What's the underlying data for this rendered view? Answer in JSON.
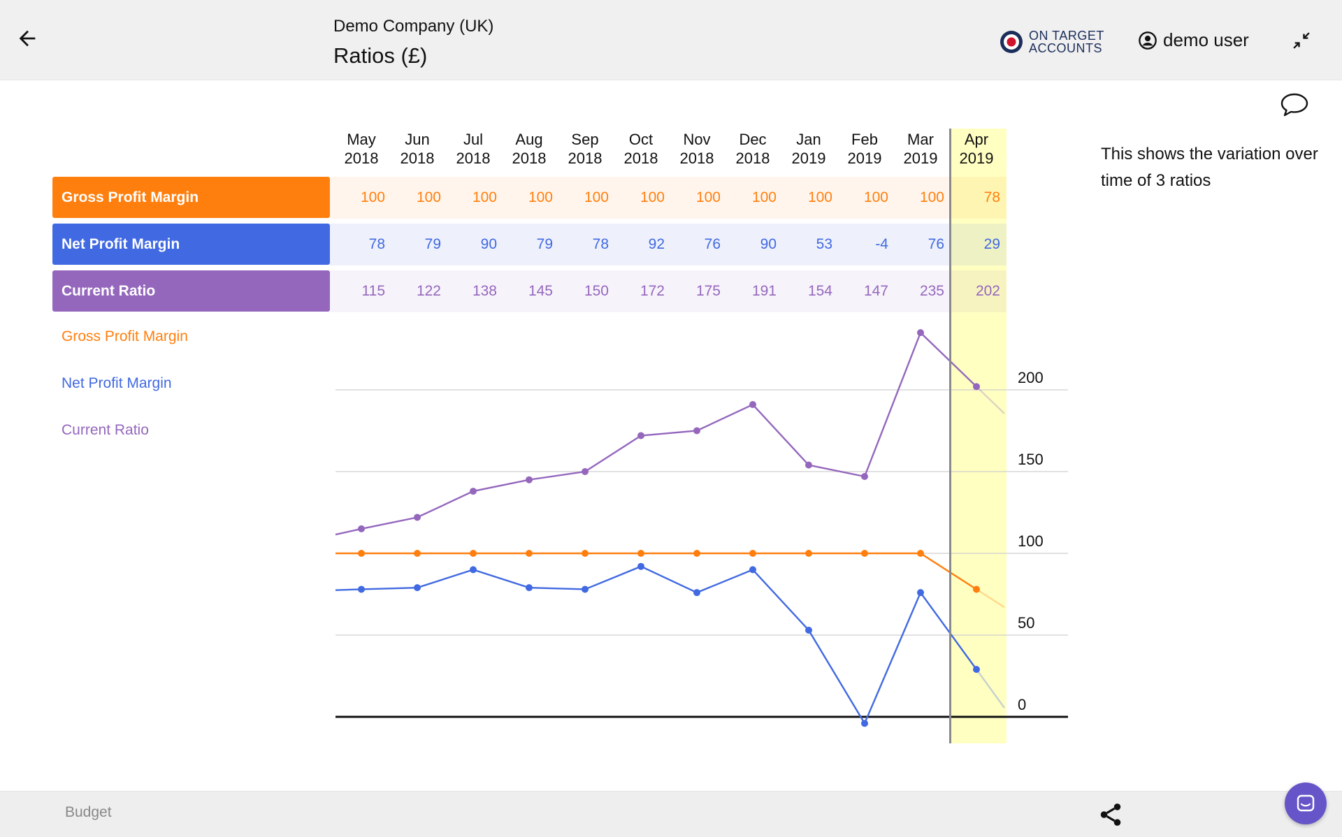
{
  "header": {
    "company": "Demo Company (UK)",
    "title": "Ratios (£)",
    "logo_line1": "ON TARGET",
    "logo_line2": "ACCOUNTS",
    "user": "demo user"
  },
  "note": "This shows the variation over time of 3 ratios",
  "months": [
    {
      "m": "May",
      "y": "2018"
    },
    {
      "m": "Jun",
      "y": "2018"
    },
    {
      "m": "Jul",
      "y": "2018"
    },
    {
      "m": "Aug",
      "y": "2018"
    },
    {
      "m": "Sep",
      "y": "2018"
    },
    {
      "m": "Oct",
      "y": "2018"
    },
    {
      "m": "Nov",
      "y": "2018"
    },
    {
      "m": "Dec",
      "y": "2018"
    },
    {
      "m": "Jan",
      "y": "2019"
    },
    {
      "m": "Feb",
      "y": "2019"
    },
    {
      "m": "Mar",
      "y": "2019"
    },
    {
      "m": "Apr",
      "y": "2019"
    }
  ],
  "colors": {
    "gross_profit_margin": "#ff7f0e",
    "net_profit_margin": "#4169e1",
    "current_ratio": "#9467bd",
    "highlight": "#ffffc2"
  },
  "footer": {
    "budget": "Budget"
  },
  "chart_data": {
    "type": "line",
    "categories": [
      "May 2018",
      "Jun 2018",
      "Jul 2018",
      "Aug 2018",
      "Sep 2018",
      "Oct 2018",
      "Nov 2018",
      "Dec 2018",
      "Jan 2019",
      "Feb 2019",
      "Mar 2019",
      "Apr 2019"
    ],
    "series": [
      {
        "name": "Gross Profit Margin",
        "key": "gross_profit_margin",
        "values": [
          100,
          100,
          100,
          100,
          100,
          100,
          100,
          100,
          100,
          100,
          100,
          78
        ]
      },
      {
        "name": "Net Profit Margin",
        "key": "net_profit_margin",
        "values": [
          78,
          79,
          90,
          79,
          78,
          92,
          76,
          90,
          53,
          -4,
          76,
          29
        ]
      },
      {
        "name": "Current Ratio",
        "key": "current_ratio",
        "values": [
          115,
          122,
          138,
          145,
          150,
          172,
          175,
          191,
          154,
          147,
          235,
          202
        ]
      }
    ],
    "y_ticks": [
      0,
      50,
      100,
      150,
      200
    ],
    "ylim": [
      -15,
      240
    ],
    "grid": true,
    "highlighted_category": "Apr 2019",
    "legend_position": "left"
  }
}
